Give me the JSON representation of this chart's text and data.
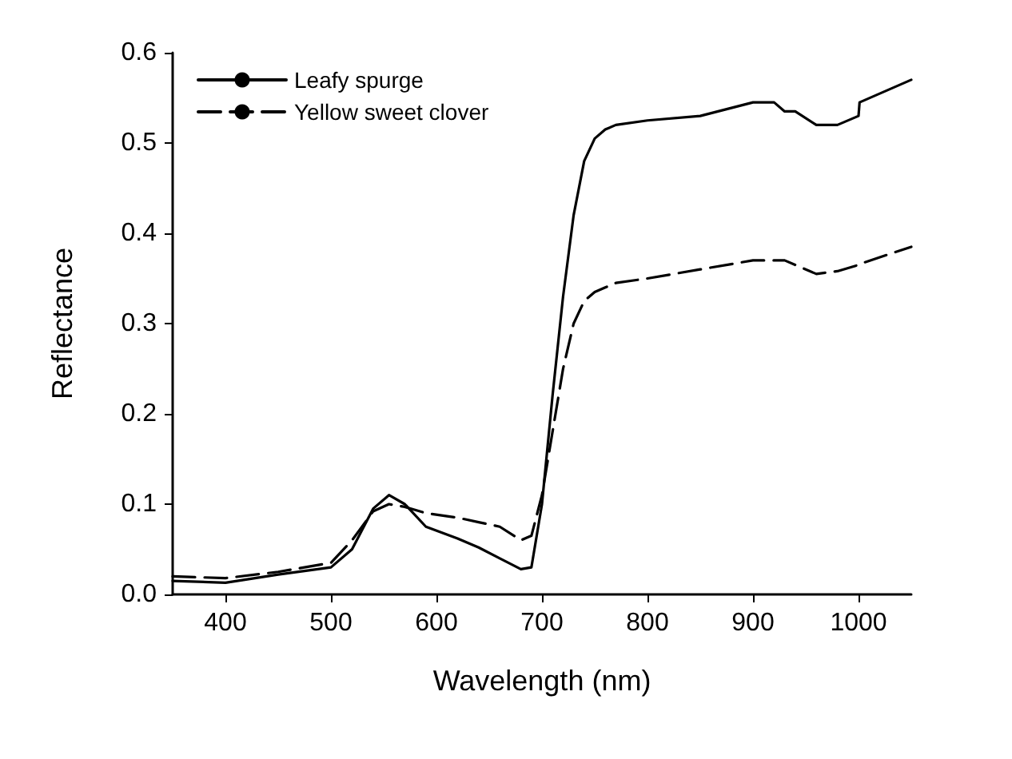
{
  "chart_data": {
    "type": "line",
    "xlabel": "Wavelength (nm)",
    "ylabel": "Reflectance",
    "xlim": [
      350,
      1050
    ],
    "xticks": [
      400,
      500,
      600,
      700,
      800,
      900,
      1000
    ],
    "ylim": [
      0,
      0.6
    ],
    "yticks": [
      {
        "value": 0,
        "label": "0.0"
      },
      {
        "value": 0.1,
        "label": "0.1"
      },
      {
        "value": 0.2,
        "label": "0.2"
      },
      {
        "value": 0.3,
        "label": "0.3"
      },
      {
        "value": 0.4,
        "label": "0.4"
      },
      {
        "value": 0.5,
        "label": "0.5"
      },
      {
        "value": 0.6,
        "label": "0.6"
      }
    ],
    "grid": false,
    "legend": "top left",
    "marker": "none",
    "x": [
      350,
      400,
      450,
      500,
      520,
      540,
      555,
      570,
      590,
      620,
      640,
      660,
      680,
      690,
      700,
      710,
      720,
      730,
      740,
      750,
      760,
      770,
      800,
      850,
      900,
      920,
      930,
      940,
      960,
      980,
      1000,
      1001,
      1050
    ],
    "series": [
      {
        "name": "Leafy spurge",
        "color": "#000000",
        "line_style": "solid",
        "values": [
          0.015,
          0.013,
          0.022,
          0.03,
          0.05,
          0.095,
          0.11,
          0.1,
          0.075,
          0.062,
          0.052,
          0.04,
          0.028,
          0.03,
          0.1,
          0.22,
          0.33,
          0.42,
          0.48,
          0.505,
          0.515,
          0.52,
          0.525,
          0.53,
          0.545,
          0.545,
          0.535,
          0.535,
          0.52,
          0.52,
          0.53,
          0.545,
          0.57
        ]
      },
      {
        "name": "Yellow sweet clover",
        "color": "#000000",
        "line_style": "dashed",
        "values": [
          0.02,
          0.018,
          0.025,
          0.035,
          0.06,
          0.092,
          0.1,
          0.097,
          0.09,
          0.085,
          0.08,
          0.075,
          0.06,
          0.065,
          0.11,
          0.18,
          0.25,
          0.3,
          0.325,
          0.335,
          0.34,
          0.345,
          0.35,
          0.36,
          0.37,
          0.37,
          0.37,
          0.365,
          0.355,
          0.358,
          0.365,
          0.366,
          0.385
        ]
      }
    ]
  }
}
